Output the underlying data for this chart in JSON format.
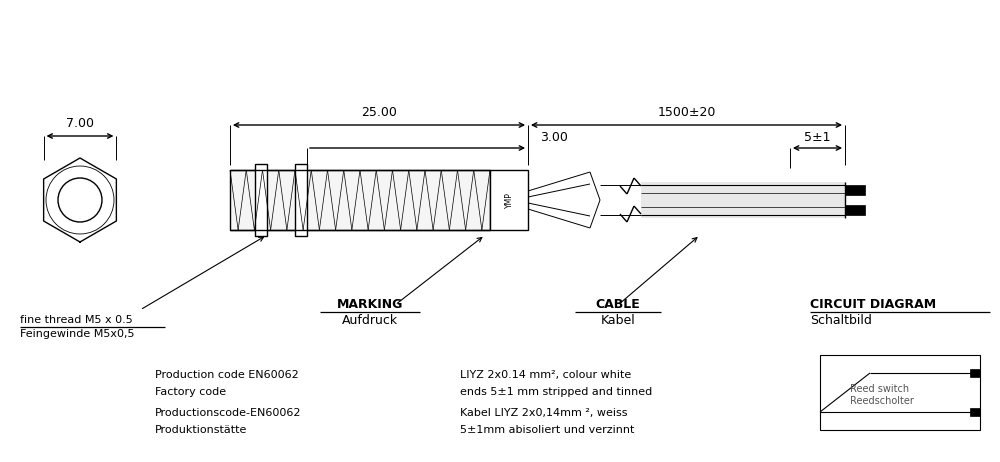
{
  "bg_color": "#ffffff",
  "line_color": "#000000",
  "dim_7": "7.00",
  "dim_25": "25.00",
  "dim_3": "3.00",
  "dim_1500": "1500±20",
  "dim_5": "5±1",
  "label_marking_en": "MARKING",
  "label_marking_de": "Aufdruck",
  "label_cable_en": "CABLE",
  "label_cable_de": "Kabel",
  "label_circuit_en": "CIRCUIT DIAGRAM",
  "label_circuit_de": "Schaltbild",
  "label_thread_en": "fine thread M5 x 0.5",
  "label_thread_de": "Feingewinde M5x0,5",
  "label_prod1": "Production code EN60062",
  "label_prod2": "Factory code",
  "label_prod3": "Productionscode-EN60062",
  "label_prod4": "Produktionstätte",
  "label_cable1": "LIYZ 2x0.14 mm², colour white",
  "label_cable2": "ends 5±1 mm stripped and tinned",
  "label_cable3": "Kabel LIYZ 2x0,14mm ², weiss",
  "label_cable4": "5±1mm abisoliert und verzinnt",
  "label_reed_en": "Reed switch",
  "label_reed_de": "Reedscholter",
  "ymp_label": "YMP"
}
